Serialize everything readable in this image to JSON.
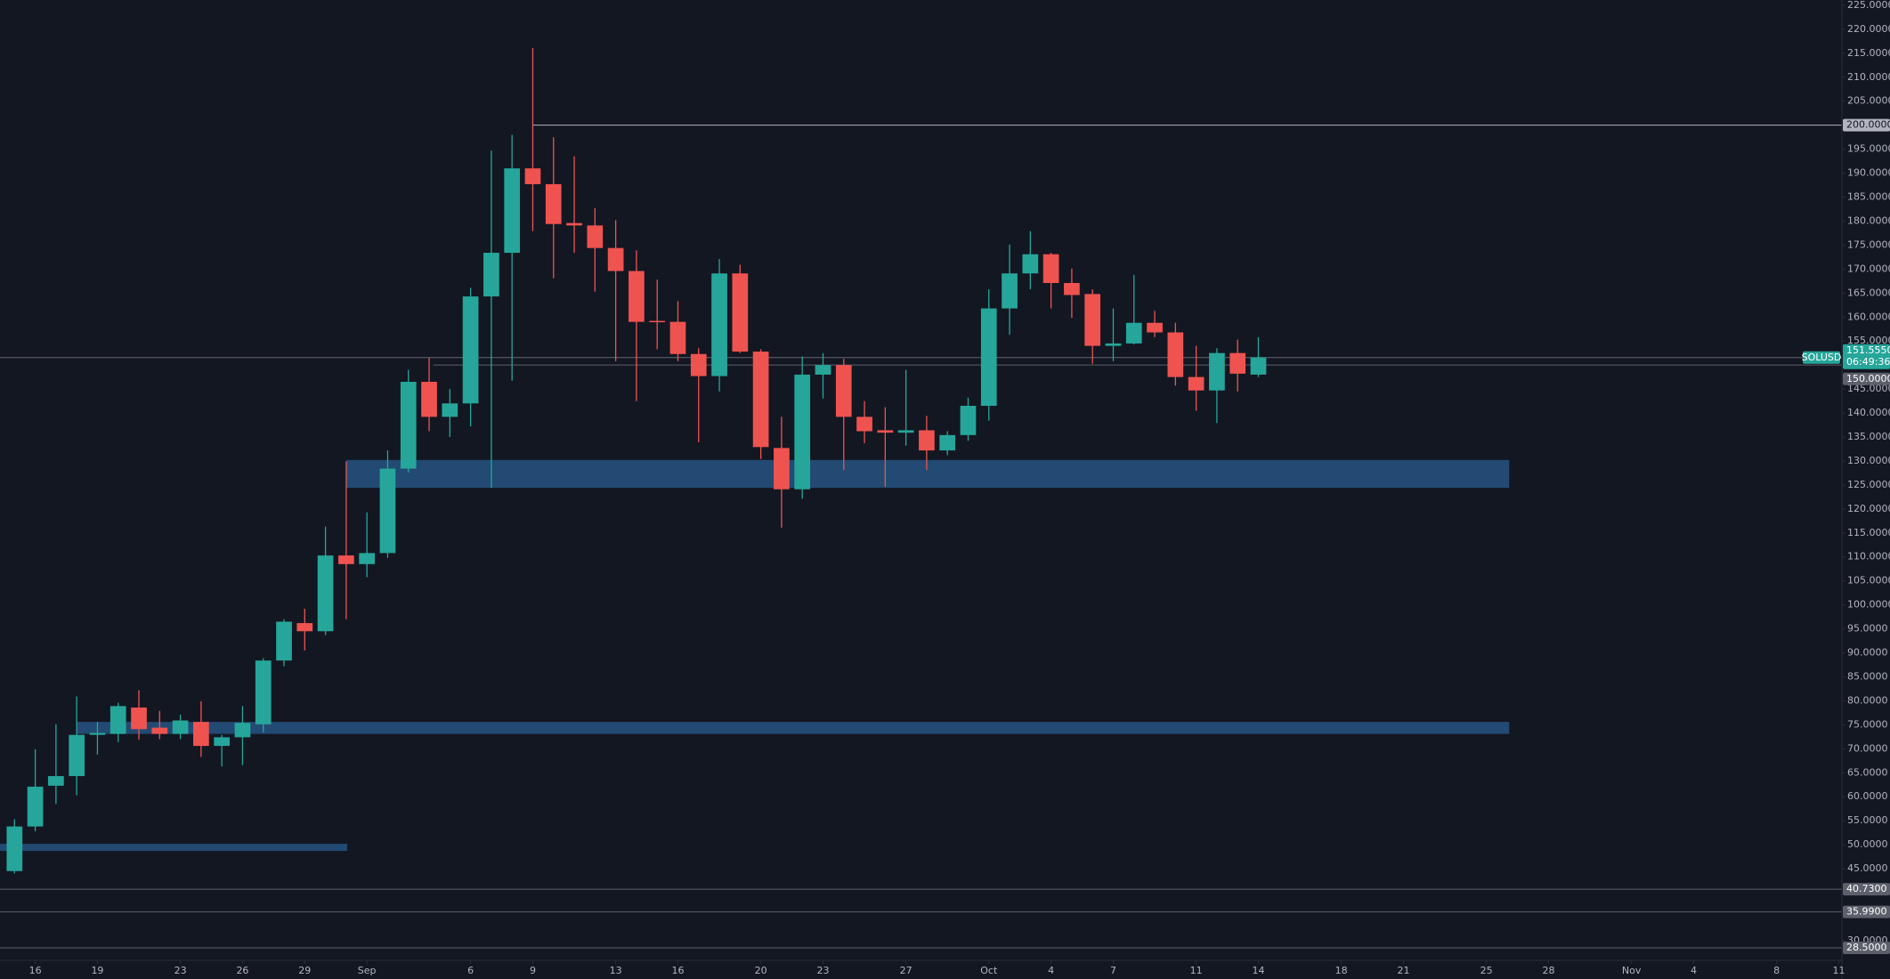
{
  "chart_data": {
    "type": "candlestick",
    "symbol": "SOLUSD",
    "current": {
      "value": 151.555,
      "label": "151.5550"
    },
    "countdown": "06:49:36",
    "up_color": "#26a69a",
    "down_color": "#ef5350",
    "x": [
      0,
      1,
      2,
      3,
      4,
      5,
      6,
      7,
      8,
      9,
      10,
      11,
      12,
      13,
      14,
      15,
      16,
      17,
      18,
      19,
      20,
      21,
      22,
      23,
      24,
      25,
      26,
      27,
      28,
      29,
      30,
      31,
      32,
      33,
      34,
      35,
      36,
      37,
      38,
      39,
      40,
      41,
      42,
      43,
      44,
      45,
      46,
      47,
      48,
      49,
      50,
      51,
      52,
      53,
      54,
      55,
      56,
      57,
      58,
      59,
      60
    ],
    "open": [
      44.5,
      53.8,
      62.3,
      64.3,
      72.9,
      73.1,
      78.6,
      74.4,
      73.1,
      75.6,
      70.6,
      72.4,
      75.1,
      88.4,
      96.2,
      94.5,
      110.3,
      108.5,
      110.8,
      128.4,
      146.5,
      139.2,
      142,
      164.3,
      173.4,
      191,
      187.7,
      179.6,
      179.1,
      174.4,
      169.6,
      159.2,
      159,
      152.3,
      147.7,
      169.1,
      152.8,
      132.7,
      124.1,
      148,
      150,
      139.2,
      136.4,
      135.9,
      136.4,
      132.2,
      135.4,
      141.5,
      161.8,
      169.1,
      173.1,
      167.1,
      164.8,
      154,
      154.5,
      158.8,
      156.8,
      147.5,
      144.7,
      152.5,
      148
    ],
    "high": [
      55.3,
      69.9,
      75.1,
      80.9,
      75.6,
      79.6,
      82.2,
      77.9,
      77.1,
      79.9,
      72.9,
      78.9,
      88.9,
      97,
      99.2,
      116.3,
      129.9,
      119.3,
      132.2,
      149,
      151.5,
      145,
      166.1,
      194.7,
      198,
      216.1,
      197.5,
      193.5,
      182.7,
      180.2,
      173.9,
      167.8,
      163.3,
      153.5,
      172.1,
      170.9,
      153.3,
      139.2,
      151.8,
      152.5,
      151.3,
      142.5,
      141.2,
      149,
      139.4,
      136.2,
      143.2,
      165.8,
      175.1,
      177.9,
      173.4,
      170.1,
      165.8,
      161.8,
      168.8,
      161.3,
      158.8,
      154,
      153.5,
      155.3,
      155.8
    ],
    "low": [
      44,
      52.8,
      58.5,
      60.3,
      68.8,
      71.4,
      71.9,
      72,
      72,
      68.3,
      66.3,
      66.6,
      73.4,
      87.2,
      90.5,
      93.7,
      97,
      105.8,
      109.8,
      127.6,
      136.2,
      135,
      137.2,
      124.4,
      146.7,
      177.9,
      168.1,
      173.4,
      165.3,
      150.8,
      142.5,
      153.3,
      150.8,
      133.9,
      144.5,
      152.5,
      130.4,
      116.1,
      122.1,
      143,
      128.1,
      133.7,
      124.6,
      133.2,
      128.1,
      131.2,
      134.2,
      138.4,
      156.3,
      165.8,
      161.8,
      159.8,
      150.3,
      150.8,
      154.3,
      155.8,
      145.7,
      140.5,
      137.9,
      144.5,
      147.5
    ],
    "close": [
      53.8,
      62.1,
      64.3,
      72.9,
      73.3,
      78.9,
      74.1,
      73.1,
      75.9,
      70.6,
      72.4,
      75.4,
      88.4,
      96.5,
      94.5,
      110.3,
      108.5,
      110.8,
      128.4,
      146.5,
      139.2,
      142,
      164.3,
      173.4,
      191,
      187.7,
      179.4,
      179.1,
      174.4,
      169.6,
      159,
      159,
      152.3,
      147.7,
      169.1,
      152.8,
      132.9,
      124.1,
      148,
      150,
      139.2,
      136.2,
      135.9,
      136.4,
      132.2,
      135.4,
      141.5,
      161.8,
      169.1,
      173.1,
      167.1,
      164.6,
      154,
      154.5,
      158.8,
      156.8,
      147.5,
      144.7,
      152.5,
      148.2,
      151.6
    ],
    "zones": [
      {
        "low": 124.4,
        "high": 130.2,
        "x_start": 16,
        "x_end": 72.1,
        "color": "#224a72"
      },
      {
        "low": 73.1,
        "high": 75.6,
        "x_start": 3,
        "x_end": 72.1,
        "color": "#224a72"
      },
      {
        "low": 48.7,
        "high": 50.2,
        "x_start": -0.7,
        "x_end": 16.05,
        "color": "#224a72"
      }
    ],
    "levels": [
      {
        "value": 200,
        "label": "200.0000",
        "x_start": 25,
        "color": "#b2b5be"
      },
      {
        "value": 150,
        "label": "150.0000",
        "x_start": 20.2,
        "color": "#5d606b"
      },
      {
        "value": 40.73,
        "label": "40.7300",
        "x_start": -0.7,
        "color": "#5d606b"
      },
      {
        "value": 35.99,
        "label": "35.9900",
        "x_start": -0.7,
        "color": "#5d606b"
      },
      {
        "value": 28.5,
        "label": "28.5000",
        "x_start": -0.7,
        "color": "#5d606b"
      }
    ],
    "xlim": [
      -0.7,
      88.15
    ],
    "ylim": [
      25.9,
      226.1
    ],
    "xticks": [
      {
        "value": 1,
        "label": "16"
      },
      {
        "value": 4,
        "label": "19"
      },
      {
        "value": 8,
        "label": "23"
      },
      {
        "value": 11,
        "label": "26"
      },
      {
        "value": 14,
        "label": "29"
      },
      {
        "value": 17,
        "label": "Sep"
      },
      {
        "value": 22,
        "label": "6"
      },
      {
        "value": 25,
        "label": "9"
      },
      {
        "value": 29,
        "label": "13"
      },
      {
        "value": 32,
        "label": "16"
      },
      {
        "value": 36,
        "label": "20"
      },
      {
        "value": 39,
        "label": "23"
      },
      {
        "value": 43,
        "label": "27"
      },
      {
        "value": 47,
        "label": "Oct"
      },
      {
        "value": 50,
        "label": "4"
      },
      {
        "value": 53,
        "label": "7"
      },
      {
        "value": 57,
        "label": "11"
      },
      {
        "value": 60,
        "label": "14"
      },
      {
        "value": 64,
        "label": "18"
      },
      {
        "value": 67,
        "label": "21"
      },
      {
        "value": 71,
        "label": "25"
      },
      {
        "value": 74,
        "label": "28"
      },
      {
        "value": 78,
        "label": "Nov"
      },
      {
        "value": 81,
        "label": "4"
      },
      {
        "value": 85,
        "label": "8"
      },
      {
        "value": 88,
        "label": "11"
      }
    ],
    "yticks": [
      {
        "value": 225,
        "label": "225.0000"
      },
      {
        "value": 220,
        "label": "220.0000"
      },
      {
        "value": 215,
        "label": "215.0000"
      },
      {
        "value": 210,
        "label": "210.0000"
      },
      {
        "value": 205,
        "label": "205.0000"
      },
      {
        "value": 195,
        "label": "195.0000"
      },
      {
        "value": 190,
        "label": "190.0000"
      },
      {
        "value": 185,
        "label": "185.0000"
      },
      {
        "value": 180,
        "label": "180.0000"
      },
      {
        "value": 175,
        "label": "175.0000"
      },
      {
        "value": 170,
        "label": "170.0000"
      },
      {
        "value": 165,
        "label": "165.0000"
      },
      {
        "value": 160,
        "label": "160.0000"
      },
      {
        "value": 155,
        "label": "155.0000"
      },
      {
        "value": 145,
        "label": "145.0000"
      },
      {
        "value": 140,
        "label": "140.0000"
      },
      {
        "value": 135,
        "label": "135.0000"
      },
      {
        "value": 130,
        "label": "130.0000"
      },
      {
        "value": 125,
        "label": "125.0000"
      },
      {
        "value": 120,
        "label": "120.0000"
      },
      {
        "value": 115,
        "label": "115.0000"
      },
      {
        "value": 110,
        "label": "110.0000"
      },
      {
        "value": 105,
        "label": "105.0000"
      },
      {
        "value": 100,
        "label": "100.0000"
      },
      {
        "value": 95,
        "label": "95.0000"
      },
      {
        "value": 90,
        "label": "90.0000"
      },
      {
        "value": 85,
        "label": "85.0000"
      },
      {
        "value": 80,
        "label": "80.0000"
      },
      {
        "value": 75,
        "label": "75.0000"
      },
      {
        "value": 70,
        "label": "70.0000"
      },
      {
        "value": 65,
        "label": "65.0000"
      },
      {
        "value": 60,
        "label": "60.0000"
      },
      {
        "value": 55,
        "label": "55.0000"
      },
      {
        "value": 50,
        "label": "50.0000"
      },
      {
        "value": 45,
        "label": "45.0000"
      },
      {
        "value": 30,
        "label": "30.0000"
      }
    ]
  }
}
